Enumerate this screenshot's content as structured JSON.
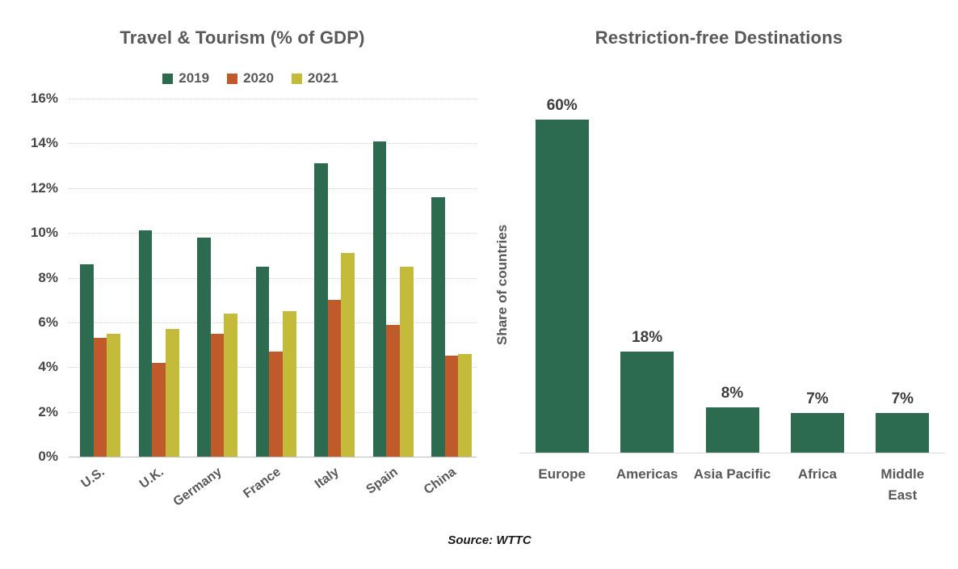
{
  "footer": {
    "source": "Source: WTTC"
  },
  "chart_data": [
    {
      "type": "bar",
      "title": "Travel & Tourism (% of GDP)",
      "categories": [
        "U.S.",
        "U.K.",
        "Germany",
        "France",
        "Italy",
        "Spain",
        "China"
      ],
      "series": [
        {
          "name": "2019",
          "color": "#2d6b50",
          "values": [
            8.6,
            10.1,
            9.8,
            8.5,
            13.1,
            14.1,
            11.6
          ]
        },
        {
          "name": "2020",
          "color": "#c05a2b",
          "values": [
            5.3,
            4.2,
            5.5,
            4.7,
            7.0,
            5.9,
            4.5
          ]
        },
        {
          "name": "2021",
          "color": "#c4bb3b",
          "values": [
            5.5,
            5.7,
            6.4,
            6.5,
            9.1,
            8.5,
            4.6
          ]
        }
      ],
      "xlabel": "",
      "ylabel": "",
      "ylim": [
        0,
        16
      ],
      "y_ticks": [
        "16%",
        "14%",
        "12%",
        "10%",
        "8%",
        "6%",
        "4%",
        "2%",
        "0%"
      ],
      "grid": true,
      "legend_position": "top"
    },
    {
      "type": "bar",
      "title": "Restriction-free Destinations",
      "categories": [
        "Europe",
        "Americas",
        "Asia Pacific",
        "Africa",
        "Middle East"
      ],
      "x_labels_rendered": [
        "Europe",
        "Americas",
        "Asia Pacific",
        "Africa",
        "Middle\nEast"
      ],
      "values": [
        60,
        18,
        8,
        7,
        7
      ],
      "data_labels": [
        "60%",
        "18%",
        "8%",
        "7%",
        "7%"
      ],
      "bar_color": "#2d6b50",
      "xlabel": "",
      "ylabel": "Share of countries",
      "ylim": [
        0,
        63
      ],
      "grid": false,
      "legend_position": "none"
    }
  ],
  "colors": {
    "green_2019": "#2d6b50",
    "orange_2020": "#c05a2b",
    "yellow_2021": "#c4bb3b",
    "title_gray": "#595959",
    "tick_gray": "#474747",
    "gridline": "#cfcfcf",
    "axis_line": "#bfbfbf"
  }
}
